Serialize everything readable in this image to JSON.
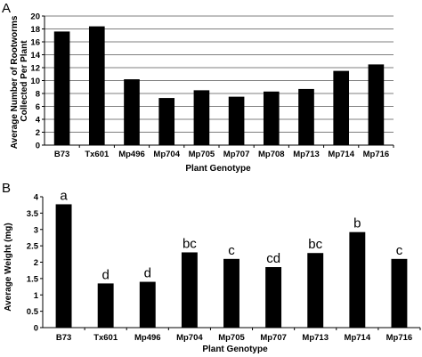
{
  "chart_data": [
    {
      "panel": "A",
      "type": "bar",
      "ylabel": "Average Number of Rootworms Collected Per Plant",
      "xlabel": "Plant Genotype",
      "categories": [
        "B73",
        "Tx601",
        "Mp496",
        "Mp704",
        "Mp705",
        "Mp707",
        "Mp708",
        "Mp713",
        "Mp714",
        "Mp716"
      ],
      "values": [
        17.6,
        18.4,
        10.2,
        7.3,
        8.5,
        7.5,
        8.3,
        8.7,
        11.5,
        12.5
      ],
      "ylim": [
        0,
        20
      ],
      "yticks": [
        "0",
        "2",
        "4",
        "6",
        "8",
        "10",
        "12",
        "14",
        "16",
        "18",
        "20"
      ],
      "grid": true,
      "bar_color": "#000000"
    },
    {
      "panel": "B",
      "type": "bar",
      "ylabel": "Average Weight (mg)",
      "xlabel": "Plant Genotype",
      "categories": [
        "B73",
        "Tx601",
        "Mp496",
        "Mp704",
        "Mp705",
        "Mp707",
        "Mp713",
        "Mp714",
        "Mp716"
      ],
      "values": [
        3.77,
        1.35,
        1.4,
        2.3,
        2.1,
        1.85,
        2.28,
        2.92,
        2.1
      ],
      "labels": [
        "a",
        "d",
        "d",
        "bc",
        "c",
        "cd",
        "bc",
        "b",
        "c"
      ],
      "ylim": [
        0,
        4
      ],
      "yticks": [
        "0",
        "0.5",
        "1",
        "1.5",
        "2",
        "2.5",
        "3",
        "3.5",
        "4"
      ],
      "grid": false,
      "bar_color": "#000000"
    }
  ]
}
